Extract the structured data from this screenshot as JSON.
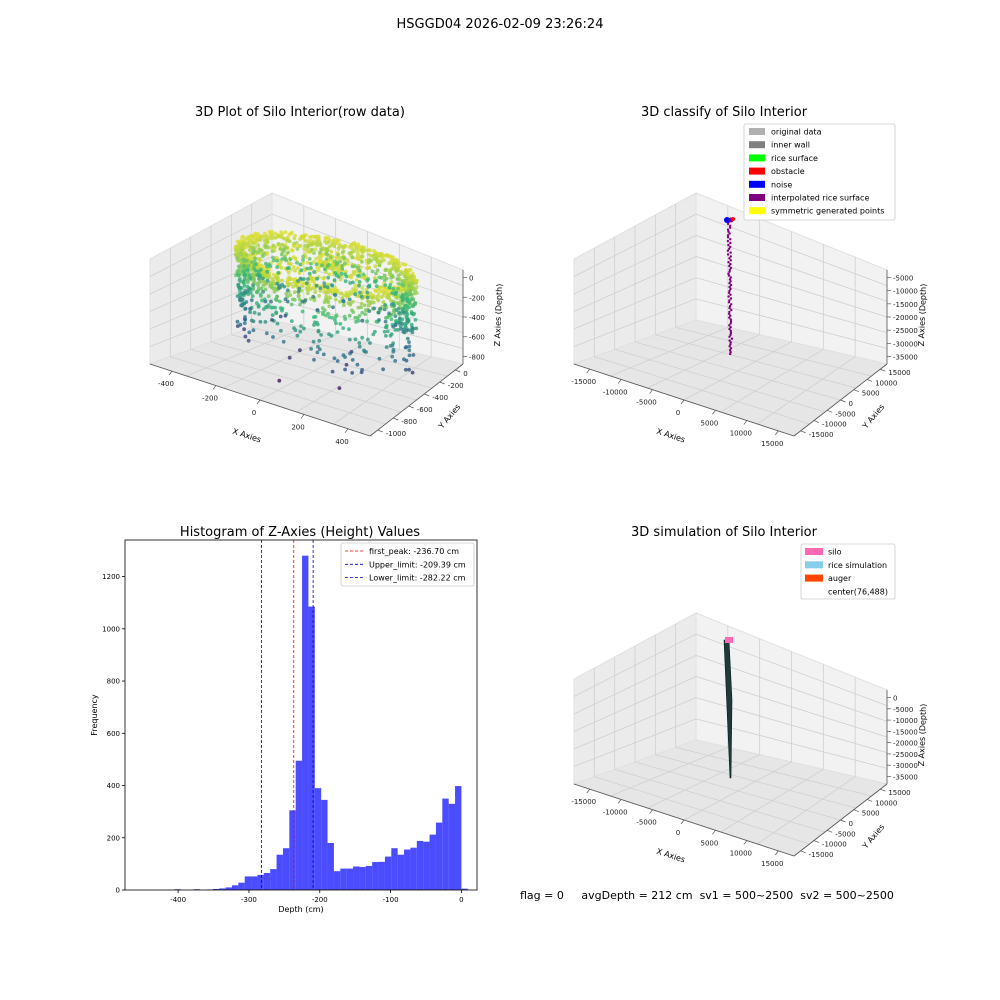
{
  "figure": {
    "suptitle": "HSGGD04 2026-02-09 23:26:24",
    "status": {
      "flag": "flag = 0",
      "avg_depth": "avgDepth = 212 cm",
      "sv1": "sv1 = 500~2500",
      "sv2": "sv2 = 500~2500"
    }
  },
  "chart_data": [
    {
      "type": "scatter",
      "subtype": "3d-scatter",
      "title": "3D Plot of Silo Interior(row data)",
      "xlabel": "X Axies",
      "ylabel": "Y Axies",
      "zlabel": "Z Axies (Depth)",
      "x_ticks": [
        "-400",
        "-200",
        "0",
        "200",
        "400"
      ],
      "y_ticks": [
        "0",
        "-200",
        "-400",
        "-600",
        "-800",
        "-1000"
      ],
      "z_ticks": [
        "0",
        "-200",
        "-400",
        "-600",
        "-800"
      ],
      "xlim": [
        -480,
        480
      ],
      "ylim": [
        -1100,
        100
      ],
      "zlim": [
        -950,
        50
      ],
      "colormap": [
        "#440154",
        "#31688e",
        "#35b779",
        "#fde725"
      ],
      "points_note": "cylindrical shell of points roughly centered at x=0, y=-450, radius about 330, depth from 0 to -800, colored by depth"
    },
    {
      "type": "scatter",
      "subtype": "3d-scatter",
      "title": "3D classify of Silo Interior",
      "xlabel": "X Axies",
      "ylabel": "Y Axies",
      "zlabel": "Z Axies (Depth)",
      "x_ticks": [
        "-15000",
        "-10000",
        "-5000",
        "0",
        "5000",
        "10000",
        "15000"
      ],
      "y_ticks": [
        "15000",
        "10000",
        "5000",
        "0",
        "-5000",
        "-10000",
        "-15000"
      ],
      "z_ticks": [
        "-5000",
        "-10000",
        "-15000",
        "-20000",
        "-25000",
        "-30000",
        "-35000"
      ],
      "legend_position": "top-right",
      "legend": [
        {
          "label": "original data",
          "color": "#b0b0b0"
        },
        {
          "label": "inner wall",
          "color": "#808080"
        },
        {
          "label": "rice surface",
          "color": "#00ff00"
        },
        {
          "label": "obstacle",
          "color": "#ff0000"
        },
        {
          "label": "noise",
          "color": "#0000ff"
        },
        {
          "label": "interpolated rice surface",
          "color": "#800080"
        },
        {
          "label": "symmetric generated points",
          "color": "#ffff00"
        }
      ]
    },
    {
      "type": "bar",
      "subtype": "histogram",
      "title": "Histogram of Z-Axies (Height) Values",
      "xlabel": "Depth (cm)",
      "ylabel": "Frequency",
      "bar_color": "#0000ff",
      "xlim": [
        -475,
        22
      ],
      "ylim": [
        0,
        1340
      ],
      "x_ticks": [
        -400,
        -300,
        -200,
        -100,
        0
      ],
      "y_ticks": [
        0,
        200,
        400,
        600,
        800,
        1000,
        1200
      ],
      "bin_width": 9,
      "bin_start": -405,
      "values": [
        3,
        0,
        0,
        3,
        0,
        2,
        4,
        6,
        10,
        18,
        28,
        52,
        52,
        58,
        65,
        80,
        135,
        160,
        305,
        495,
        1280,
        1085,
        390,
        345,
        180,
        72,
        82,
        82,
        90,
        88,
        92,
        107,
        108,
        128,
        160,
        135,
        155,
        162,
        188,
        185,
        212,
        258,
        350,
        330,
        398,
        5
      ],
      "legend_position": "top-right",
      "vlines": [
        {
          "label": "first_peak: -236.70 cm",
          "x": -236.7,
          "color": "#ff0000"
        },
        {
          "label": "Upper_limit: -209.39 cm",
          "x": -209.39,
          "color": "#0000cc"
        },
        {
          "label": "Lower_limit: -282.22 cm",
          "x": -282.22,
          "color": "#0000cc"
        }
      ]
    },
    {
      "type": "scatter",
      "subtype": "3d-surface",
      "title": "3D simulation of Silo Interior",
      "xlabel": "X Axies",
      "ylabel": "Y Axies",
      "zlabel": "Z Axies (Depth)",
      "x_ticks": [
        "-15000",
        "-10000",
        "-5000",
        "0",
        "5000",
        "10000",
        "15000"
      ],
      "y_ticks": [
        "15000",
        "10000",
        "5000",
        "0",
        "-5000",
        "-10000",
        "-15000"
      ],
      "z_ticks": [
        "0",
        "-5000",
        "-10000",
        "-15000",
        "-20000",
        "-25000",
        "-30000",
        "-35000"
      ],
      "legend_position": "top-right",
      "legend": [
        {
          "label": "silo",
          "color": "#ff69b4"
        },
        {
          "label": "rice simulation",
          "color": "#87ceeb"
        },
        {
          "label": "auger",
          "color": "#ff4500"
        },
        {
          "label": "center(76,488)",
          "color": "none"
        }
      ]
    }
  ]
}
